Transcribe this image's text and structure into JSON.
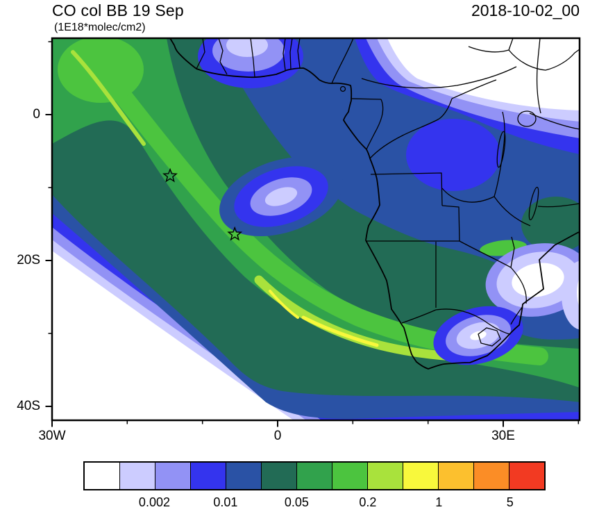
{
  "header": {
    "title": "CO col BB 19 Sep",
    "units": "(1E18*molec/cm2)",
    "timestamp": "2018-10-02_00"
  },
  "axes": {
    "y_ticks": [
      "0",
      "20S",
      "40S"
    ],
    "x_ticks": [
      "30W",
      "0",
      "30E"
    ]
  },
  "colorbar": {
    "colors": [
      "#ffffff",
      "#ccccff",
      "#9292f5",
      "#3434ee",
      "#2a52a5",
      "#226b55",
      "#31a24c",
      "#4cc43f",
      "#a9e23c",
      "#f8f83c",
      "#fcc02e",
      "#fb8d26",
      "#f23a22"
    ],
    "labels": [
      "0.002",
      "0.01",
      "0.05",
      "0.2",
      "1",
      "5"
    ]
  },
  "chart_data": {
    "type": "heatmap",
    "subtype": "filled_contour_map",
    "title": "CO col BB 19 Sep",
    "units": "1E18*molec/cm2",
    "valid_time": "2018-10-02_00",
    "region": "Africa and the tropical/South Atlantic",
    "lon_range": [
      -30,
      40.2
    ],
    "lat_range": [
      -41.9,
      10.5
    ],
    "x_ticks": [
      {
        "lon": -30,
        "label": "30W"
      },
      {
        "lon": 0,
        "label": "0"
      },
      {
        "lon": 30,
        "label": "30E"
      }
    ],
    "y_ticks": [
      {
        "lat": 0,
        "label": "0"
      },
      {
        "lat": -20,
        "label": "20S"
      },
      {
        "lat": -40,
        "label": "40S"
      }
    ],
    "labeled_contour_levels": [
      0.002,
      0.01,
      0.05,
      0.2,
      1,
      5
    ],
    "palette": [
      "#ffffff",
      "#ccccff",
      "#9292f5",
      "#3434ee",
      "#2a52a5",
      "#226b55",
      "#31a24c",
      "#4cc43f",
      "#a9e23c",
      "#f8f83c",
      "#fcc02e",
      "#fb8d26",
      "#f23a22"
    ],
    "legend_position": "bottom",
    "grid": false,
    "markers": [
      {
        "symbol": "star",
        "lon": -14.3,
        "lat": -8.4
      },
      {
        "symbol": "star",
        "lon": -5.7,
        "lat": -16.4
      }
    ],
    "features": [
      "Broad biomass-burning CO plume (~0.05-0.5) arcing from the Gulf of Guinea southeastward across the South Atlantic toward southern Africa",
      "Enhanced streak (~0.2-1) offshore of Namibia near 20-28S, 0-8E",
      "Low-CO eye (<0.01) centered near 0E, 11S inside the plume",
      "Values below 0.002 in the far southwest Atlantic and over northeast Africa"
    ]
  }
}
